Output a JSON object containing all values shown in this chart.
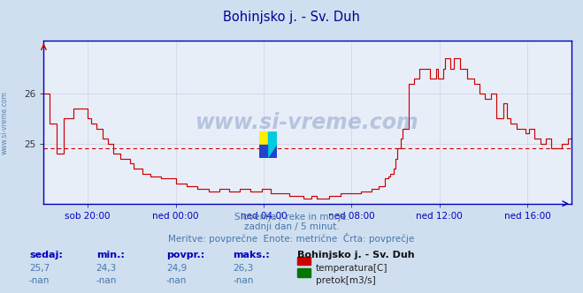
{
  "title": "Bohinjsko j. - Sv. Duh",
  "title_color": "#000099",
  "bg_color": "#d0dff0",
  "plot_bg_color": "#e8eef8",
  "grid_color": "#c8c8d8",
  "axis_color": "#0000bb",
  "line_color": "#cc0000",
  "avg_line_color": "#cc0000",
  "ylim_min": 23.8,
  "ylim_max": 27.05,
  "yticks": [
    25,
    26
  ],
  "xtick_labels": [
    "sob 20:00",
    "ned 00:00",
    "ned 04:00",
    "ned 08:00",
    "ned 12:00",
    "ned 16:00"
  ],
  "xtick_positions": [
    0.0834,
    0.2501,
    0.4167,
    0.5834,
    0.7501,
    0.9167
  ],
  "watermark_text": "www.si-vreme.com",
  "watermark_color": "#4466aa",
  "subtitle1": "Slovenija / reke in morje.",
  "subtitle2": "zadnji dan / 5 minut.",
  "subtitle3": "Meritve: povprečne  Enote: metrične  Črta: povprečje",
  "subtitle_color": "#4477aa",
  "left_label": "www.si-vreme.com",
  "left_label_color": "#4477aa",
  "label_sedaj": "sedaj:",
  "label_min": "min.:",
  "label_povpr": "povpr.:",
  "label_maks": "maks.:",
  "label_station": "Bohinjsko j. - Sv. Duh",
  "val_sedaj": "25,7",
  "val_min": "24,3",
  "val_povpr": "24,9",
  "val_maks": "26,3",
  "val_sedaj2": "-nan",
  "val_min2": "-nan",
  "val_povpr2": "-nan",
  "val_maks2": "-nan",
  "legend_temp": "temperatura[C]",
  "legend_pretok": "pretok[m3/s]",
  "avg_value": 24.9,
  "temp_color": "#cc0000",
  "pretok_color": "#007700"
}
